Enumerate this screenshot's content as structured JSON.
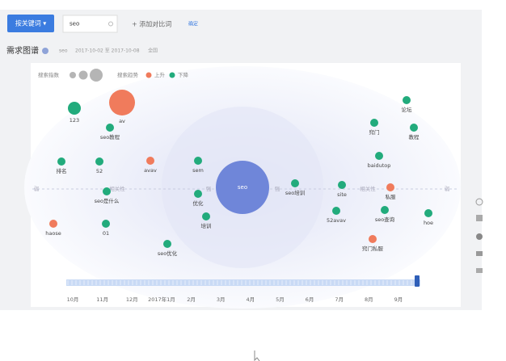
{
  "toolbar": {
    "mode_button": "按关键词 ▾",
    "keyword": "seo",
    "add_compare": "+ 添加对比词",
    "confirm": "确定"
  },
  "header": {
    "title": "需求图谱",
    "keyword": "seo",
    "date_range": "2017-10-02 至 2017-10-08",
    "region": "全国"
  },
  "legend": {
    "index_label": "搜索指数",
    "trend_label": "搜索趋势",
    "rise": "上升",
    "fall": "下降",
    "rise_color": "#f07b5c",
    "fall_color": "#22ab7c"
  },
  "axis_labels": [
    "弱",
    "相关性",
    "强",
    "强",
    "相关性",
    "弱"
  ],
  "nodes": [
    {
      "label": "seo",
      "color": "#6f86d9"
    },
    {
      "label": "123",
      "color": "#22ab7c"
    },
    {
      "label": "av",
      "color": "#f07b5c"
    },
    {
      "label": "seo教程",
      "color": "#22ab7c"
    },
    {
      "label": "排名",
      "color": "#22ab7c"
    },
    {
      "label": "52",
      "color": "#22ab7c"
    },
    {
      "label": "avav",
      "color": "#f07b5c"
    },
    {
      "label": "sem",
      "color": "#22ab7c"
    },
    {
      "label": "seo培训",
      "color": "#22ab7c"
    },
    {
      "label": "site",
      "color": "#22ab7c"
    },
    {
      "label": "私服",
      "color": "#f07b5c"
    },
    {
      "label": "baidutop",
      "color": "#22ab7c"
    },
    {
      "label": "窍门",
      "color": "#22ab7c"
    },
    {
      "label": "论坛",
      "color": "#22ab7c"
    },
    {
      "label": "教程",
      "color": "#22ab7c"
    },
    {
      "label": "优化",
      "color": "#22ab7c"
    },
    {
      "label": "seo是什么",
      "color": "#22ab7c"
    },
    {
      "label": "培训",
      "color": "#22ab7c"
    },
    {
      "label": "01",
      "color": "#22ab7c"
    },
    {
      "label": "haose",
      "color": "#f07b5c"
    },
    {
      "label": "52avav",
      "color": "#22ab7c"
    },
    {
      "label": "seo查询",
      "color": "#22ab7c"
    },
    {
      "label": "hoe",
      "color": "#22ab7c"
    },
    {
      "label": "seo优化",
      "color": "#22ab7c"
    },
    {
      "label": "窍门私服",
      "color": "#f07b5c"
    }
  ],
  "timeline": [
    "10月",
    "11月",
    "12月",
    "2017年1月",
    "2月",
    "3月",
    "4月",
    "5月",
    "6月",
    "7月",
    "8月",
    "9月"
  ]
}
